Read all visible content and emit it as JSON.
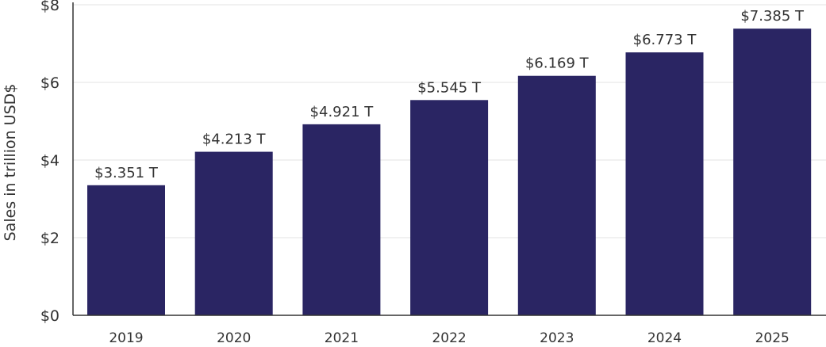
{
  "chart_data": {
    "type": "bar",
    "title": "",
    "xlabel": "",
    "ylabel": "Sales in trillion USD$",
    "categories": [
      "2019",
      "2020",
      "2021",
      "2022",
      "2023",
      "2024",
      "2025"
    ],
    "values": [
      3.351,
      4.213,
      4.921,
      5.545,
      6.169,
      6.773,
      7.385
    ],
    "data_labels": [
      "$3.351 T",
      "$4.213 T",
      "$4.921 T",
      "$5.545 T",
      "$6.169 T",
      "$6.773 T",
      "$7.385 T"
    ],
    "ylim": [
      0,
      8
    ],
    "yticks": [
      0,
      2,
      4,
      6,
      8
    ],
    "ytick_labels": [
      "$0",
      "$2",
      "$4",
      "$6",
      "$8"
    ],
    "grid": true,
    "legend": "none",
    "colors": {
      "bar": "#2a2563",
      "grid": "#e3e3e3",
      "axis": "#333333",
      "text": "#333333"
    }
  }
}
